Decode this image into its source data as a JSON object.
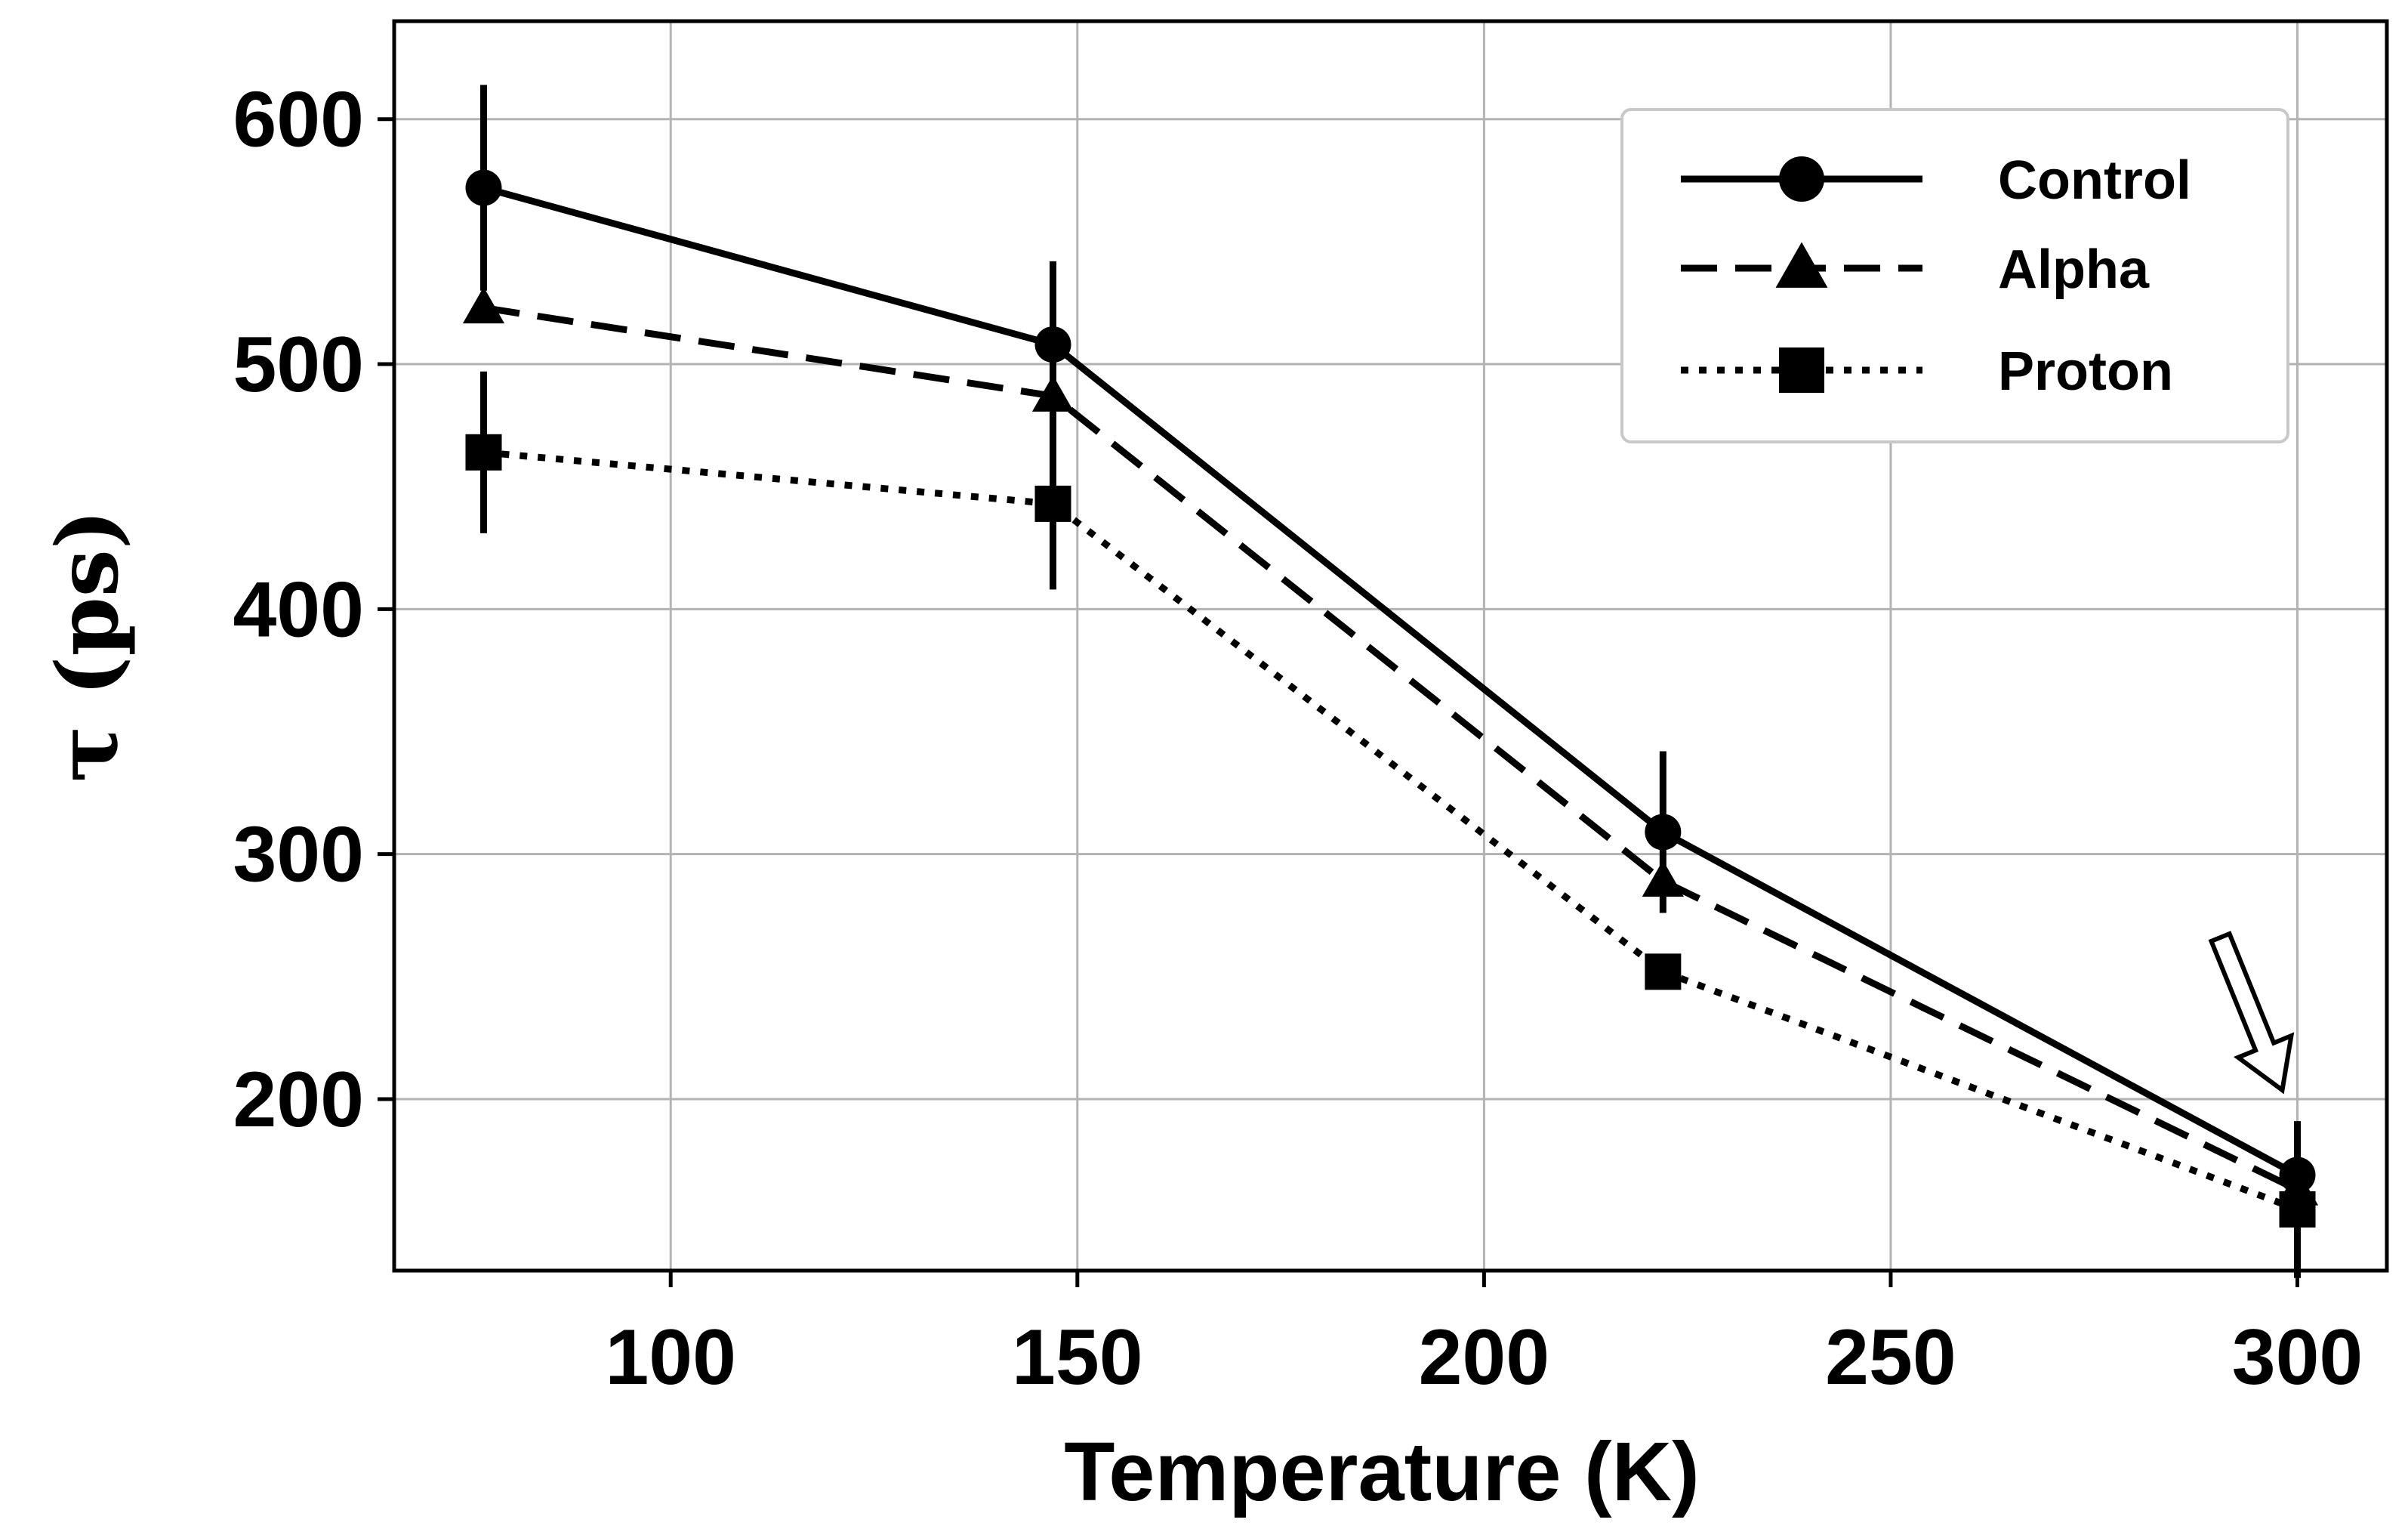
{
  "chart_data": {
    "type": "line",
    "title": "",
    "xlabel": "Temperature (K)",
    "ylabel": "τ (ps)",
    "xlim": [
      66,
      311
    ],
    "ylim": [
      130,
      640
    ],
    "xticks": [
      100,
      150,
      200,
      250,
      300
    ],
    "yticks": [
      200,
      300,
      400,
      500,
      600
    ],
    "grid": true,
    "legend_position": "top-right",
    "x": [
      77,
      147,
      222,
      300
    ],
    "series": [
      {
        "name": "Control",
        "marker": "circle",
        "linestyle": "solid",
        "values": [
          572,
          508,
          309,
          169
        ],
        "errors": [
          42,
          34,
          33,
          22
        ]
      },
      {
        "name": "Alpha",
        "marker": "triangle",
        "linestyle": "dashed",
        "values": [
          523,
          487,
          289,
          163
        ],
        "errors": [
          0,
          0,
          0,
          0
        ]
      },
      {
        "name": "Proton",
        "marker": "square",
        "linestyle": "dotted",
        "values": [
          464,
          443,
          252,
          155
        ],
        "errors": [
          33,
          35,
          0,
          28
        ]
      }
    ],
    "annotations": [
      {
        "type": "arrow",
        "target_x": 300,
        "target_y": 200
      }
    ]
  }
}
